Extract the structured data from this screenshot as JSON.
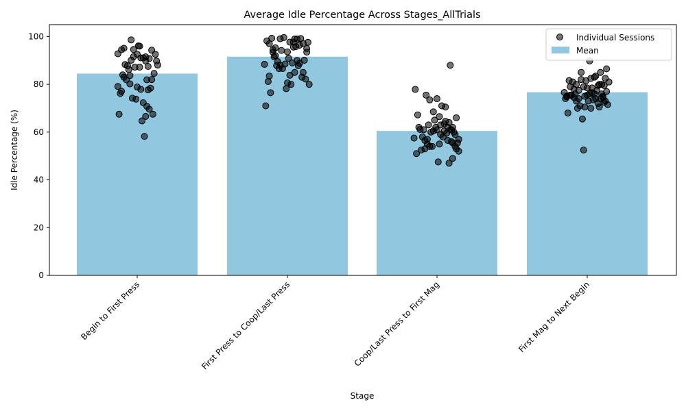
{
  "chart_data": {
    "type": "bar",
    "title": "Average Idle Percentage Across Stages_AllTrials",
    "xlabel": "Stage",
    "ylabel": "Idle Percentage (%)",
    "ylim": [
      0,
      105
    ],
    "yticks": [
      0,
      20,
      40,
      60,
      80,
      100
    ],
    "categories": [
      "Begin to First Press",
      "First Press to Coop/Last Press",
      "Coop/Last Press to First Mag",
      "First Mag to Next Begin"
    ],
    "legend_position": "top-right",
    "grid": false,
    "series": [
      {
        "name": "Mean",
        "kind": "bar",
        "color": "#92c8df",
        "values": [
          84.5,
          91.6,
          60.5,
          76.7
        ]
      },
      {
        "name": "Individual Sessions",
        "kind": "scatter",
        "color": "#000000",
        "points": [
          [
            [
              -0.16,
              92.8
            ],
            [
              -0.13,
              94.5
            ],
            [
              -0.1,
              88.3
            ],
            [
              -0.07,
              86.2
            ],
            [
              -0.16,
              79.1
            ],
            [
              -0.14,
              76.2
            ],
            [
              -0.12,
              84.0
            ],
            [
              -0.15,
              67.5
            ],
            [
              -0.11,
              83.0
            ],
            [
              -0.09,
              81.9
            ],
            [
              -0.05,
              98.6
            ],
            [
              -0.03,
              94.6
            ],
            [
              0.0,
              92.6
            ],
            [
              0.02,
              96.0
            ],
            [
              0.05,
              91.1
            ],
            [
              0.07,
              89.8
            ],
            [
              0.1,
              90.8
            ],
            [
              0.12,
              94.3
            ],
            [
              0.15,
              92.6
            ],
            [
              0.17,
              88.1
            ],
            [
              -0.06,
              80.2
            ],
            [
              -0.04,
              74.2
            ],
            [
              0.0,
              78.9
            ],
            [
              0.03,
              77.9
            ],
            [
              0.08,
              81.9
            ],
            [
              0.11,
              78.4
            ],
            [
              0.14,
              84.6
            ],
            [
              -0.01,
              73.8
            ],
            [
              0.05,
              72.3
            ],
            [
              0.08,
              70.8
            ],
            [
              0.1,
              69.6
            ],
            [
              0.13,
              67.5
            ],
            [
              0.04,
              64.7
            ],
            [
              0.07,
              66.6
            ],
            [
              0.06,
              58.2
            ],
            [
              -0.08,
              87.8
            ],
            [
              -0.02,
              87.2
            ],
            [
              0.02,
              87.2
            ],
            [
              0.09,
              87.5
            ],
            [
              0.16,
              89.8
            ],
            [
              -0.05,
              90.1
            ],
            [
              0.01,
              96.1
            ],
            [
              0.07,
              91.5
            ],
            [
              -0.11,
              95.1
            ],
            [
              -0.13,
              77.1
            ],
            [
              0.12,
              82.0
            ],
            [
              0.03,
              91.1
            ],
            [
              -0.06,
              83.7
            ],
            [
              0.09,
              77.7
            ],
            [
              -0.03,
              91.6
            ]
          ],
          [
            [
              -0.19,
              88.4
            ],
            [
              -0.17,
              98.2
            ],
            [
              -0.15,
              97.0
            ],
            [
              -0.12,
              93.5
            ],
            [
              -0.1,
              95.3
            ],
            [
              -0.08,
              89.5
            ],
            [
              -0.06,
              99.1
            ],
            [
              -0.03,
              99.6
            ],
            [
              0.0,
              93.6
            ],
            [
              0.02,
              97.7
            ],
            [
              0.05,
              95.6
            ],
            [
              0.08,
              99.0
            ],
            [
              0.1,
              96.4
            ],
            [
              0.13,
              97.1
            ],
            [
              0.16,
              95.0
            ],
            [
              0.18,
              80.0
            ],
            [
              -0.18,
              71.0
            ],
            [
              -0.14,
              76.5
            ],
            [
              -0.11,
              91.5
            ],
            [
              -0.07,
              86.6
            ],
            [
              -0.04,
              86.6
            ],
            [
              0.0,
              80.6
            ],
            [
              0.03,
              80.0
            ],
            [
              0.06,
              85.0
            ],
            [
              0.09,
              87.8
            ],
            [
              0.12,
              83.0
            ],
            [
              0.15,
              82.2
            ],
            [
              -0.01,
              78.2
            ],
            [
              0.04,
              89.0
            ],
            [
              0.08,
              90.0
            ],
            [
              -0.16,
              81.2
            ],
            [
              -0.13,
              99.3
            ],
            [
              -0.09,
              87.9
            ],
            [
              -0.05,
              94.2
            ],
            [
              0.01,
              90.9
            ],
            [
              0.05,
              97.7
            ],
            [
              0.11,
              99.2
            ],
            [
              0.14,
              90.1
            ],
            [
              -0.02,
              88.5
            ],
            [
              0.07,
              95.8
            ],
            [
              0.17,
              97.6
            ],
            [
              -0.06,
              88.0
            ],
            [
              0.1,
              88.8
            ],
            [
              -0.15,
              83.5
            ],
            [
              0.13,
              85.0
            ],
            [
              0.02,
              83.8
            ],
            [
              -0.1,
              92.0
            ],
            [
              0.06,
              99.0
            ],
            [
              -0.12,
              94.5
            ],
            [
              0.16,
              93.5
            ]
          ],
          [
            [
              -0.18,
              77.9
            ],
            [
              -0.16,
              67.2
            ],
            [
              -0.14,
              61.1
            ],
            [
              -0.12,
              58.0
            ],
            [
              -0.1,
              56.5
            ],
            [
              -0.08,
              55.0
            ],
            [
              -0.06,
              54.0
            ],
            [
              -0.03,
              60.5
            ],
            [
              0.0,
              61.0
            ],
            [
              0.03,
              63.0
            ],
            [
              0.06,
              60.5
            ],
            [
              0.09,
              62.0
            ],
            [
              0.12,
              61.0
            ],
            [
              0.15,
              59.0
            ],
            [
              0.18,
              57.0
            ],
            [
              -0.17,
              51.0
            ],
            [
              -0.13,
              52.5
            ],
            [
              -0.1,
              53.0
            ],
            [
              -0.06,
              73.5
            ],
            [
              -0.03,
              68.5
            ],
            [
              0.0,
              74.0
            ],
            [
              0.04,
              71.0
            ],
            [
              0.07,
              70.5
            ],
            [
              0.1,
              64.0
            ],
            [
              0.13,
              62.0
            ],
            [
              0.16,
              66.0
            ],
            [
              0.11,
              88.0
            ],
            [
              0.01,
              47.5
            ],
            [
              0.1,
              47.0
            ],
            [
              0.13,
              49.0
            ],
            [
              0.18,
              52.0
            ],
            [
              -0.08,
              57.0
            ],
            [
              -0.05,
              60.0
            ],
            [
              -0.01,
              62.0
            ],
            [
              0.02,
              55.0
            ],
            [
              0.05,
              58.0
            ],
            [
              0.08,
              59.5
            ],
            [
              0.12,
              56.0
            ],
            [
              0.15,
              54.0
            ],
            [
              -0.15,
              62.0
            ],
            [
              -0.11,
              61.0
            ],
            [
              -0.04,
              54.0
            ],
            [
              0.06,
              63.5
            ],
            [
              0.14,
              60.0
            ],
            [
              0.17,
              55.5
            ],
            [
              -0.19,
              57.5
            ],
            [
              0.03,
              59.0
            ],
            [
              0.09,
              56.5
            ],
            [
              0.16,
              53.0
            ],
            [
              -0.09,
              75.5
            ],
            [
              0.02,
              66.5
            ],
            [
              0.07,
              64.5
            ],
            [
              -0.02,
              65.0
            ],
            [
              0.11,
              61.0
            ],
            [
              0.13,
              55.5
            ],
            [
              -0.07,
              63.0
            ]
          ],
          [
            [
              -0.19,
              76.6
            ],
            [
              -0.17,
              74.8
            ],
            [
              -0.15,
              81.6
            ],
            [
              -0.13,
              75.4
            ],
            [
              -0.11,
              78.0
            ],
            [
              -0.09,
              80.0
            ],
            [
              -0.07,
              74.0
            ],
            [
              -0.05,
              82.0
            ],
            [
              -0.03,
              79.0
            ],
            [
              0.0,
              78.5
            ],
            [
              0.03,
              82.5
            ],
            [
              0.06,
              83.0
            ],
            [
              0.09,
              79.5
            ],
            [
              0.12,
              80.0
            ],
            [
              0.15,
              82.5
            ],
            [
              0.18,
              81.0
            ],
            [
              -0.18,
              74.0
            ],
            [
              -0.14,
              75.5
            ],
            [
              -0.1,
              76.0
            ],
            [
              -0.06,
              71.0
            ],
            [
              -0.02,
              75.0
            ],
            [
              0.01,
              73.0
            ],
            [
              0.04,
              76.5
            ],
            [
              0.07,
              74.0
            ],
            [
              0.1,
              70.5
            ],
            [
              0.13,
              74.5
            ],
            [
              0.16,
              77.0
            ],
            [
              -0.16,
              68.0
            ],
            [
              -0.08,
              70.0
            ],
            [
              -0.04,
              65.5
            ],
            [
              0.03,
              70.0
            ],
            [
              0.09,
              72.0
            ],
            [
              0.14,
              72.5
            ],
            [
              0.17,
              71.5
            ],
            [
              -0.03,
              52.5
            ],
            [
              0.02,
              89.8
            ],
            [
              0.07,
              83.5
            ],
            [
              0.11,
              85.0
            ],
            [
              0.16,
              86.5
            ],
            [
              0.1,
              80.0
            ],
            [
              -0.12,
              81.0
            ],
            [
              -0.05,
              85.0
            ],
            [
              0.0,
              75.5
            ],
            [
              0.05,
              73.5
            ],
            [
              0.12,
              76.0
            ],
            [
              -0.09,
              73.0
            ],
            [
              -0.14,
              79.0
            ],
            [
              0.08,
              77.5
            ],
            [
              0.14,
              79.5
            ],
            [
              -0.01,
              81.5
            ],
            [
              0.06,
              76.0
            ],
            [
              0.13,
              75.0
            ],
            [
              -0.07,
              77.5
            ],
            [
              0.04,
              78.5
            ],
            [
              -0.11,
              74.5
            ],
            [
              0.15,
              73.0
            ],
            [
              0.02,
              76.0
            ],
            [
              -0.17,
              75.0
            ],
            [
              0.11,
              74.0
            ],
            [
              -0.02,
              70.5
            ]
          ]
        ]
      }
    ]
  }
}
